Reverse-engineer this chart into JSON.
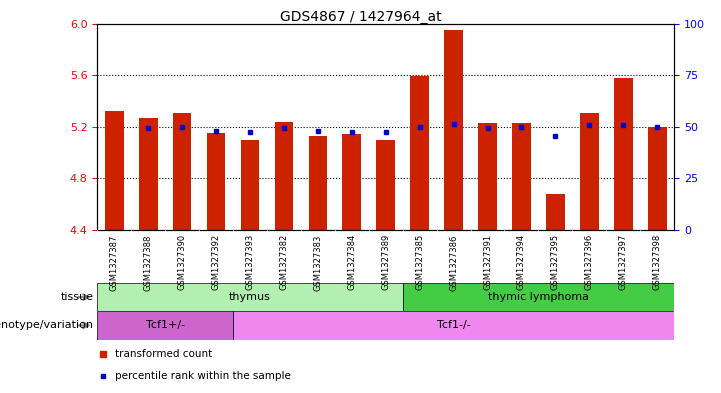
{
  "title": "GDS4867 / 1427964_at",
  "samples": [
    "GSM1327387",
    "GSM1327388",
    "GSM1327390",
    "GSM1327392",
    "GSM1327393",
    "GSM1327382",
    "GSM1327383",
    "GSM1327384",
    "GSM1327389",
    "GSM1327385",
    "GSM1327386",
    "GSM1327391",
    "GSM1327394",
    "GSM1327395",
    "GSM1327396",
    "GSM1327397",
    "GSM1327398"
  ],
  "red_values": [
    5.32,
    5.27,
    5.31,
    5.15,
    5.1,
    5.24,
    5.13,
    5.14,
    5.1,
    5.59,
    5.95,
    5.23,
    5.23,
    4.68,
    5.31,
    5.58,
    5.2
  ],
  "blue_values": [
    null,
    5.19,
    5.2,
    5.17,
    5.16,
    5.19,
    5.17,
    5.16,
    5.16,
    5.2,
    5.22,
    5.19,
    5.2,
    5.13,
    5.21,
    5.21,
    5.2
  ],
  "ylim_left": [
    4.4,
    6.0
  ],
  "ylim_right": [
    0,
    100
  ],
  "yticks_left": [
    4.4,
    4.8,
    5.2,
    5.6,
    6.0
  ],
  "yticks_right": [
    0,
    25,
    50,
    75,
    100
  ],
  "dotted_lines": [
    4.8,
    5.2,
    5.6
  ],
  "tissue_groups": [
    {
      "label": "thymus",
      "start": 0,
      "end": 9,
      "color": "#b2f0b2"
    },
    {
      "label": "thymic lymphoma",
      "start": 9,
      "end": 17,
      "color": "#44cc44"
    }
  ],
  "genotype_groups": [
    {
      "label": "Tcf1+/-",
      "start": 0,
      "end": 4,
      "color": "#cc66cc"
    },
    {
      "label": "Tcf1-/-",
      "start": 4,
      "end": 17,
      "color": "#ee88ee"
    }
  ],
  "bar_color": "#cc2200",
  "blue_color": "#0000cc",
  "bar_width": 0.55,
  "bar_bottom": 4.4,
  "legend_items": [
    "transformed count",
    "percentile rank within the sample"
  ],
  "title_fontsize": 10,
  "tick_fontsize": 8,
  "label_fontsize": 8,
  "n_samples": 17
}
